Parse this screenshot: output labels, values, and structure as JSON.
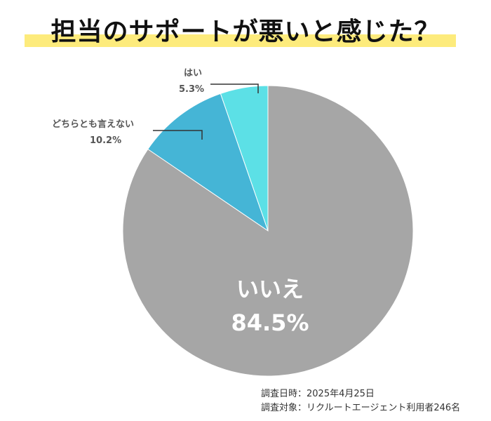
{
  "title": "担当のサポートが悪いと感じた？",
  "chart_data": {
    "type": "pie",
    "categories": [
      "いいえ",
      "どちらとも言えない",
      "はい"
    ],
    "values": [
      84.5,
      10.2,
      5.3
    ],
    "value_labels": [
      "84.5%",
      "10.2%",
      "5.3%"
    ],
    "colors": [
      "#a6a6a6",
      "#45b5d6",
      "#5ce0e6"
    ],
    "start": "12 o'clock",
    "direction": "counterclockwise from はい"
  },
  "footer": {
    "date": "調査日時：2025年4月25日",
    "target": "調査対象：リクルートエージェント利用者246名"
  }
}
